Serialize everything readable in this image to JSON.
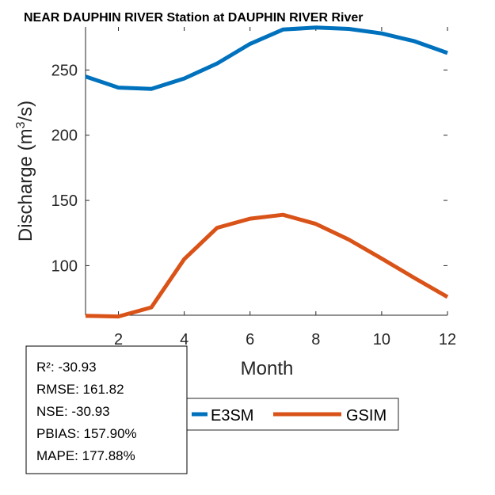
{
  "chart_data": {
    "type": "line",
    "title": "NEAR DAUPHIN RIVER  Station at  DAUPHIN RIVER  River",
    "xlabel": "Month",
    "ylabel": "Discharge (m",
    "ylabel_superscript": "3",
    "ylabel_suffix": "/s)",
    "xlim": [
      1,
      12
    ],
    "ylim": [
      62,
      283
    ],
    "xticks": [
      2,
      4,
      6,
      8,
      10,
      12
    ],
    "yticks": [
      100,
      150,
      200,
      250
    ],
    "x": [
      1,
      2,
      3,
      4,
      5,
      6,
      7,
      8,
      9,
      10,
      11,
      12
    ],
    "series": [
      {
        "name": "E3SM",
        "color": "#0072bd",
        "values": [
          245,
          236.5,
          235.5,
          243.5,
          255,
          270,
          281,
          282.5,
          281.5,
          278,
          272,
          263
        ]
      },
      {
        "name": "GSIM",
        "color": "#d95319",
        "values": [
          61.5,
          61,
          68,
          105,
          129,
          136,
          139,
          132,
          120,
          105.5,
          90.5,
          76
        ]
      }
    ],
    "legend": {
      "placement": "below",
      "entries": [
        "E3SM",
        "GSIM"
      ]
    },
    "stats": {
      "r2": "R²: -30.93",
      "rmse": "RMSE: 161.82",
      "nse": "NSE: -30.93",
      "pbias": "PBIAS: 157.90%",
      "mape": "MAPE: 177.88%"
    }
  }
}
